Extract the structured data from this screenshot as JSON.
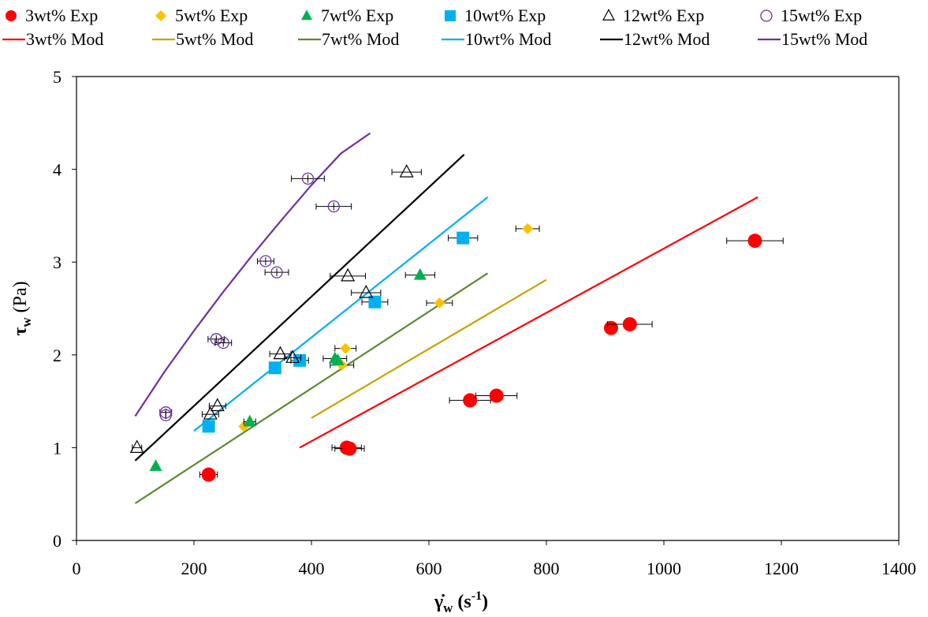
{
  "chart_data": {
    "type": "scatter",
    "xlabel": "γ̇",
    "xlabel_sub": "w",
    "xlabel_unit": " (s",
    "xlabel_unit_sup": "-1",
    "xlabel_unit_end": ")",
    "ylabel": "τ",
    "ylabel_sub": "w",
    "ylabel_unit": " (Pa)",
    "xlim": [
      0,
      1400
    ],
    "ylim": [
      0,
      5
    ],
    "xticks": [
      0,
      200,
      400,
      600,
      800,
      1000,
      1200,
      1400
    ],
    "yticks": [
      0,
      1,
      2,
      3,
      4,
      5
    ],
    "grid": false,
    "legend_position": "top",
    "series_exp": [
      {
        "name": "3wt% Exp",
        "marker": "circle",
        "color": "#ff0000",
        "points": [
          [
            225,
            0.71,
            15
          ],
          [
            460,
            1.0,
            25
          ],
          [
            465,
            0.99,
            25
          ],
          [
            670,
            1.51,
            35
          ],
          [
            715,
            1.56,
            35
          ],
          [
            910,
            2.29,
            0
          ],
          [
            942,
            2.33,
            38
          ],
          [
            1155,
            3.23,
            48
          ]
        ]
      },
      {
        "name": "5wt% Exp",
        "marker": "diamond",
        "color": "#ffc000",
        "points": [
          [
            285,
            1.23,
            0
          ],
          [
            452,
            1.89,
            20
          ],
          [
            458,
            2.07,
            18
          ],
          [
            618,
            2.56,
            22
          ],
          [
            768,
            3.36,
            20
          ]
        ]
      },
      {
        "name": "7wt% Exp",
        "marker": "triangle",
        "color": "#00b050",
        "points": [
          [
            135,
            0.8,
            0
          ],
          [
            295,
            1.28,
            10
          ],
          [
            440,
            1.96,
            20
          ],
          [
            445,
            1.94,
            0
          ],
          [
            585,
            2.86,
            25
          ]
        ]
      },
      {
        "name": "10wt% Exp",
        "marker": "square",
        "color": "#00b0f0",
        "points": [
          [
            225,
            1.23,
            0
          ],
          [
            338,
            1.86,
            0
          ],
          [
            380,
            1.94,
            15
          ],
          [
            508,
            2.57,
            22
          ],
          [
            658,
            3.26,
            25
          ]
        ]
      },
      {
        "name": "12wt% Exp",
        "marker": "triangle-open",
        "color": "#000000",
        "points": [
          [
            103,
            1.0,
            8
          ],
          [
            228,
            1.36,
            14
          ],
          [
            240,
            1.45,
            14
          ],
          [
            347,
            2.01,
            18
          ],
          [
            368,
            1.97,
            14
          ],
          [
            462,
            2.85,
            30
          ],
          [
            493,
            2.67,
            25
          ],
          [
            562,
            3.97,
            25
          ]
        ]
      },
      {
        "name": "15wt% Exp",
        "marker": "circle-open",
        "color": "#7030a0",
        "points": [
          [
            152,
            1.38,
            10
          ],
          [
            152,
            1.35,
            0
          ],
          [
            238,
            2.17,
            14
          ],
          [
            250,
            2.13,
            14
          ],
          [
            322,
            3.01,
            14
          ],
          [
            341,
            2.89,
            20
          ],
          [
            394,
            3.9,
            28
          ],
          [
            438,
            3.6,
            30
          ]
        ]
      }
    ],
    "series_mod": [
      {
        "name": "3wt% Mod",
        "color": "#ff0000",
        "x": [
          380,
          1160
        ],
        "y": [
          1.0,
          3.7
        ]
      },
      {
        "name": "5wt% Mod",
        "color": "#c9a200",
        "x": [
          400,
          800
        ],
        "y": [
          1.32,
          2.81
        ]
      },
      {
        "name": "7wt% Mod",
        "color": "#5b8a32",
        "x": [
          100,
          700
        ],
        "y": [
          0.4,
          2.88
        ]
      },
      {
        "name": "10wt% Mod",
        "color": "#00b0f0",
        "x": [
          200,
          700
        ],
        "y": [
          1.18,
          3.7
        ]
      },
      {
        "name": "12wt% Mod",
        "color": "#000000",
        "x": [
          100,
          660
        ],
        "y": [
          0.86,
          4.16
        ]
      },
      {
        "name": "15wt% Mod",
        "color": "#7030a0",
        "x": [
          100,
          150,
          200,
          250,
          300,
          350,
          400,
          450,
          500
        ],
        "y": [
          1.34,
          1.82,
          2.26,
          2.68,
          3.08,
          3.46,
          3.83,
          4.17,
          4.39
        ]
      }
    ]
  }
}
